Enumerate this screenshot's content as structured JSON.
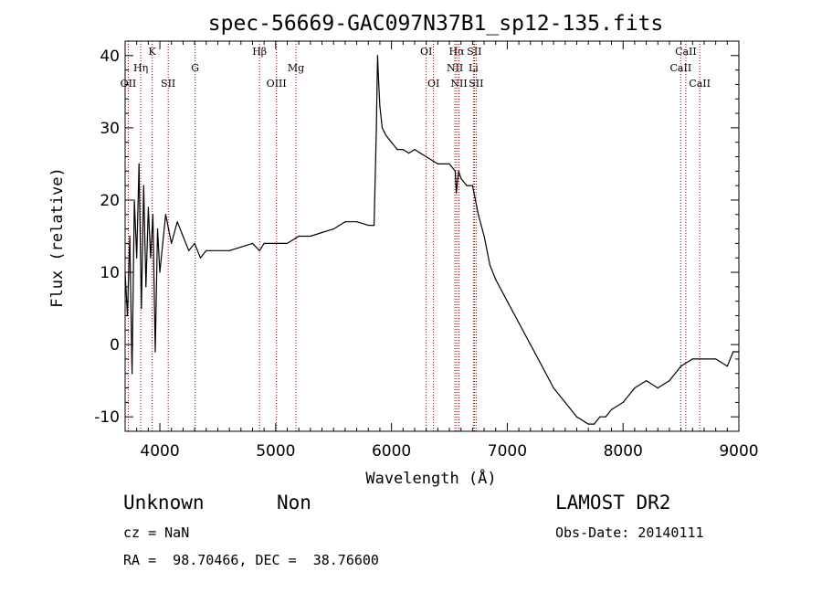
{
  "chart_data": {
    "type": "line",
    "title": "spec-56669-GAC097N37B1_sp12-135.fits",
    "xlabel": "Wavelength (Å)",
    "ylabel": "Flux (relative)",
    "xlim": [
      3700,
      9000
    ],
    "ylim": [
      -12,
      42
    ],
    "xticks": [
      4000,
      5000,
      6000,
      7000,
      8000,
      9000
    ],
    "yticks": [
      -10,
      0,
      10,
      20,
      30,
      40
    ],
    "grid": false,
    "series": [
      {
        "color": "#000000",
        "x": [
          3700,
          3720,
          3740,
          3760,
          3780,
          3800,
          3820,
          3840,
          3860,
          3880,
          3900,
          3920,
          3940,
          3960,
          3980,
          4000,
          4050,
          4100,
          4150,
          4200,
          4250,
          4300,
          4350,
          4400,
          4500,
          4600,
          4700,
          4800,
          4860,
          4900,
          5000,
          5100,
          5200,
          5300,
          5400,
          5500,
          5600,
          5700,
          5800,
          5850,
          5870,
          5880,
          5890,
          5900,
          5920,
          5950,
          6000,
          6050,
          6100,
          6150,
          6200,
          6250,
          6300,
          6350,
          6400,
          6450,
          6500,
          6550,
          6560,
          6580,
          6600,
          6650,
          6700,
          6750,
          6800,
          6850,
          6900,
          7000,
          7100,
          7200,
          7300,
          7400,
          7500,
          7600,
          7700,
          7750,
          7800,
          7850,
          7900,
          8000,
          8100,
          8200,
          8300,
          8400,
          8500,
          8600,
          8700,
          8800,
          8900,
          8950,
          9000
        ],
        "y": [
          10,
          4,
          15,
          -4,
          20,
          12,
          25,
          5,
          22,
          8,
          19,
          12,
          18,
          -1,
          16,
          10,
          18,
          14,
          17,
          15,
          13,
          14,
          12,
          13,
          13,
          13,
          13.5,
          14,
          13,
          14,
          14,
          14,
          15,
          15,
          15.5,
          16,
          17,
          17,
          16.5,
          16.5,
          30,
          40,
          36,
          33,
          30,
          29,
          28,
          27,
          27,
          26.5,
          27,
          26.5,
          26,
          25.5,
          25,
          25,
          25,
          24,
          21,
          24,
          23,
          22,
          22,
          18,
          15,
          11,
          9,
          6,
          3,
          0,
          -3,
          -6,
          -8,
          -10,
          -11,
          -11,
          -10,
          -10,
          -9,
          -8,
          -6,
          -5,
          -6,
          -5,
          -3,
          -2,
          -2,
          -2,
          -3,
          -1,
          -1
        ]
      }
    ],
    "line_markers": [
      {
        "label": "OII",
        "x": 3727,
        "row": 3
      },
      {
        "label": "Hη",
        "x": 3835,
        "row": 2
      },
      {
        "label": "K",
        "x": 3934,
        "row": 1
      },
      {
        "label": "SII",
        "x": 4072,
        "row": 3
      },
      {
        "label": "G",
        "x": 4305,
        "row": 2
      },
      {
        "label": "Hβ",
        "x": 4861,
        "row": 1
      },
      {
        "label": "OIII",
        "x": 5007,
        "row": 3
      },
      {
        "label": "Mg",
        "x": 5175,
        "row": 2
      },
      {
        "label": "OI",
        "x": 6300,
        "row": 1
      },
      {
        "label": "OI",
        "x": 6363,
        "row": 3
      },
      {
        "label": "Hα",
        "x": 6563,
        "row": 1
      },
      {
        "label": "NII",
        "x": 6548,
        "row": 2
      },
      {
        "label": "NII",
        "x": 6583,
        "row": 3
      },
      {
        "label": "SII",
        "x": 6716,
        "row": 1
      },
      {
        "label": "Li",
        "x": 6708,
        "row": 2
      },
      {
        "label": "SII",
        "x": 6731,
        "row": 3
      },
      {
        "label": "CaII",
        "x": 8542,
        "row": 1
      },
      {
        "label": "CaII",
        "x": 8498,
        "row": 2
      },
      {
        "label": "CaII",
        "x": 8662,
        "row": 3
      }
    ],
    "marker_color": "#a00000"
  },
  "info": {
    "object_class": "Unknown",
    "subclass": "Non",
    "survey": "LAMOST DR2",
    "cz": "cz = NaN",
    "obs_date": "Obs-Date: 20140111",
    "coords": "RA =  98.70466, DEC =  38.76600"
  }
}
